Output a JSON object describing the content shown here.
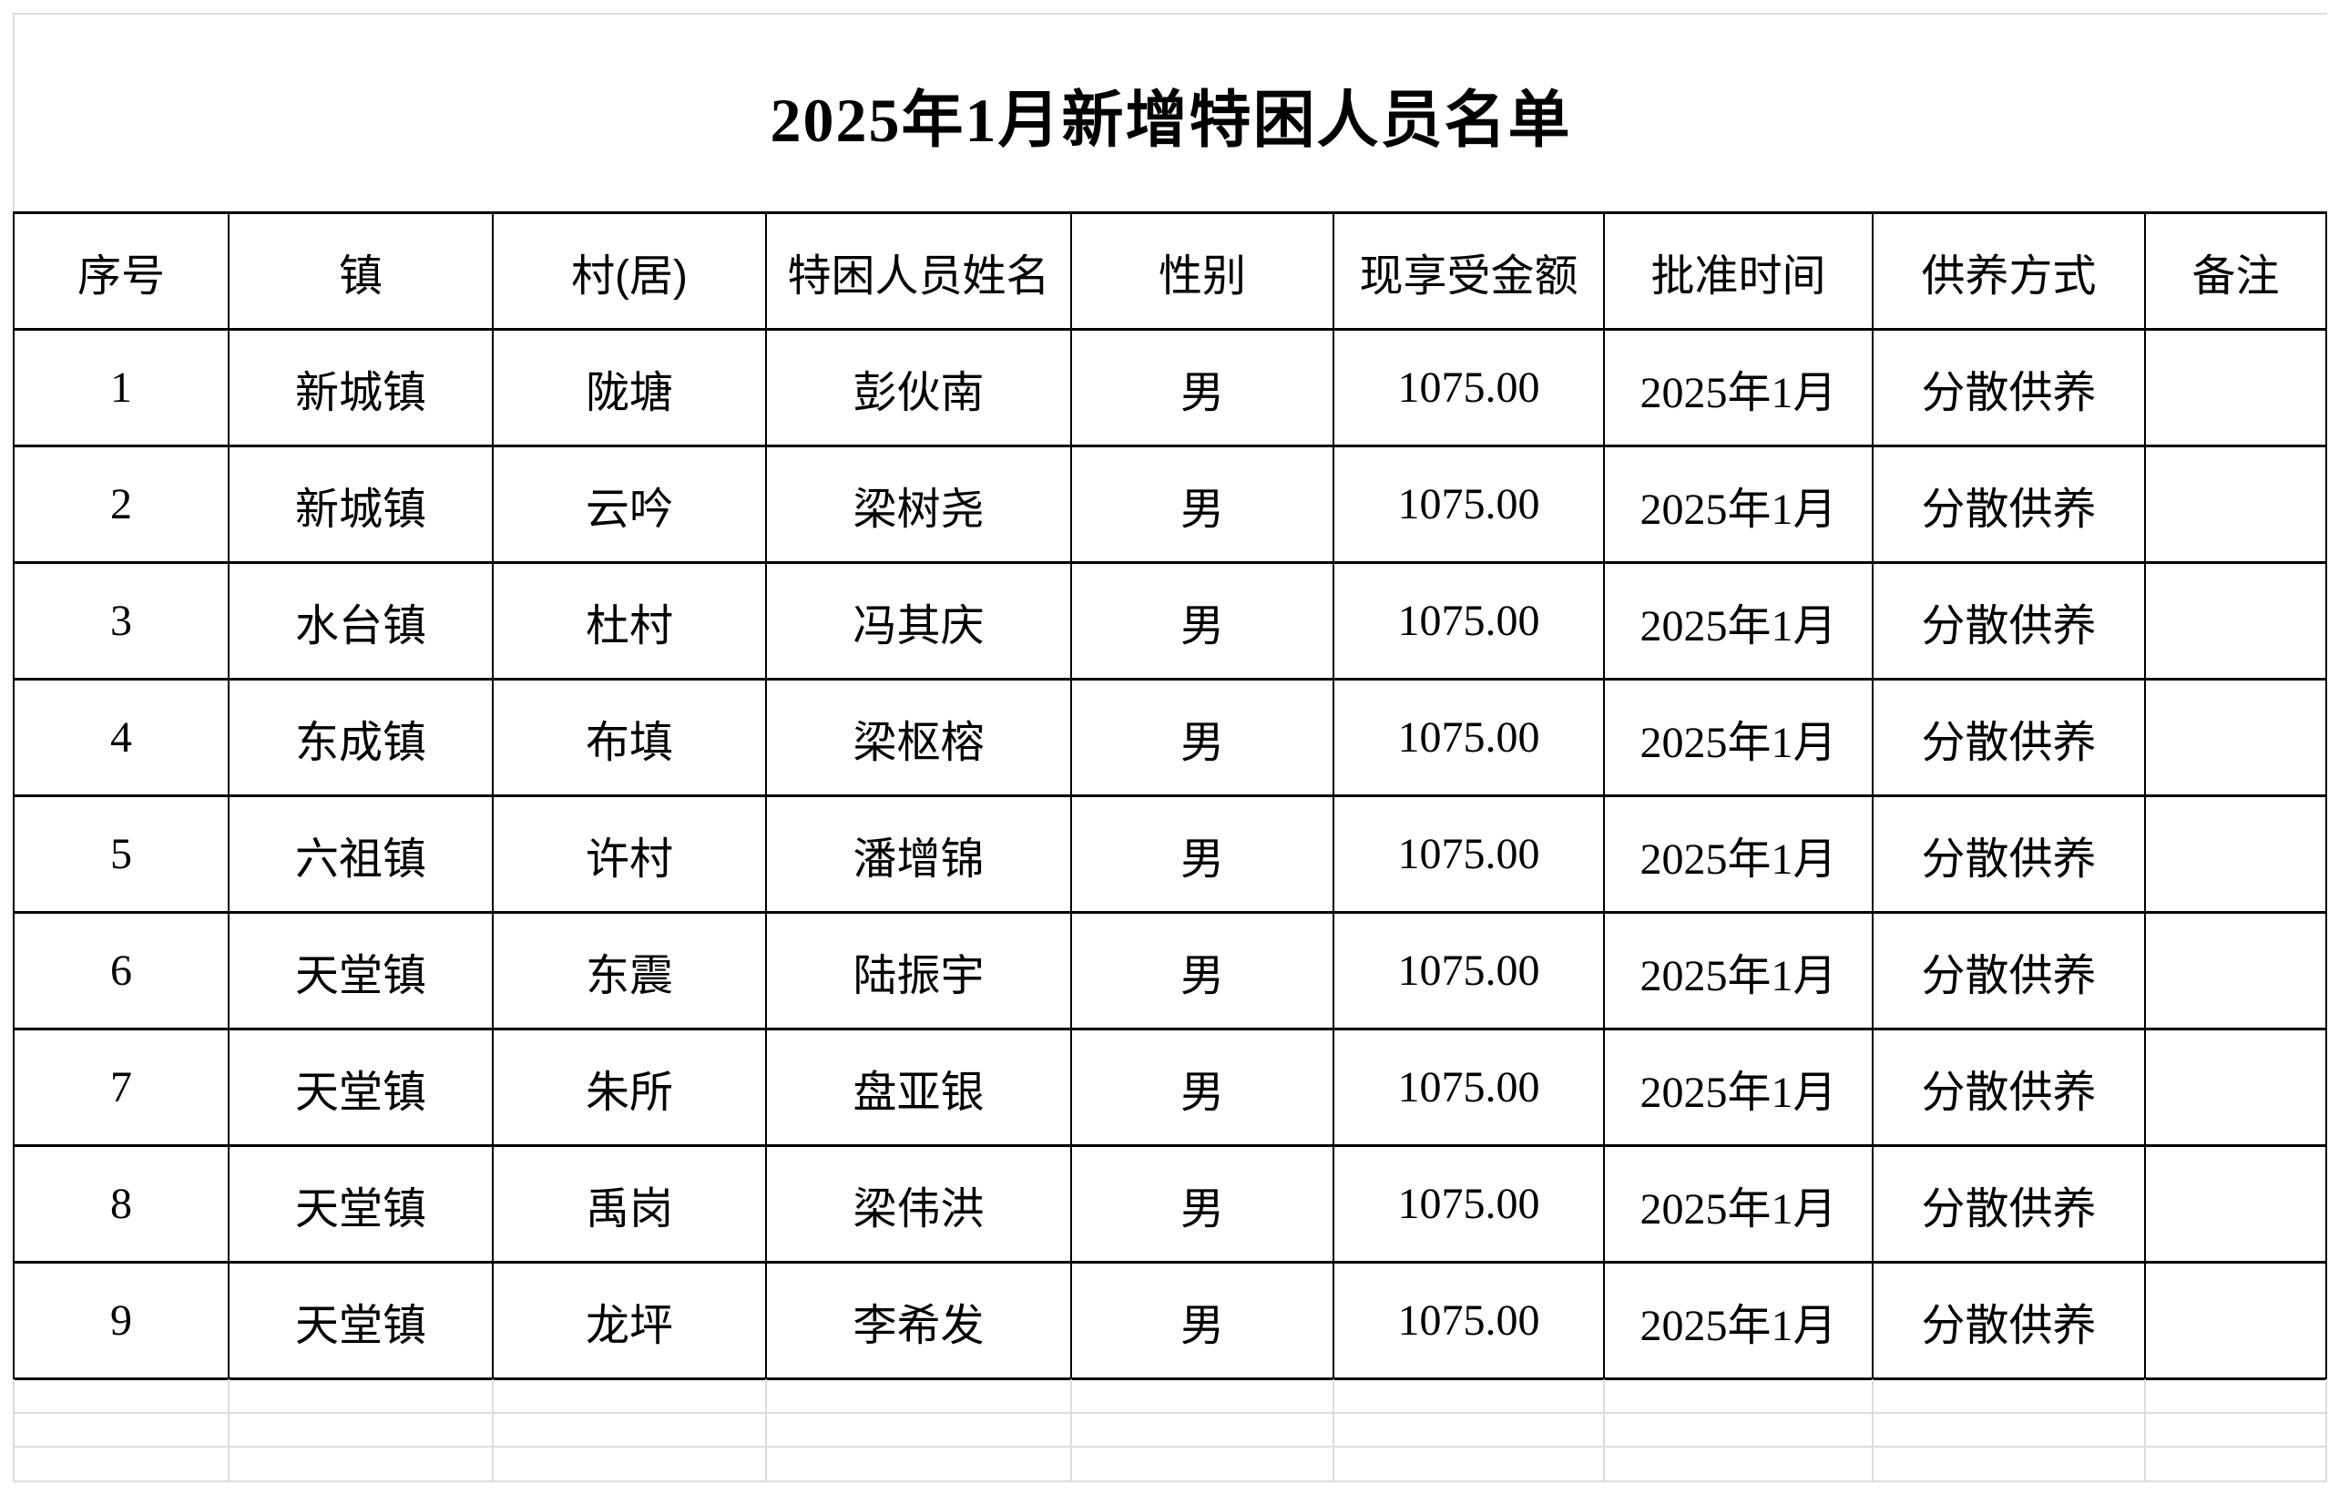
{
  "title": "2025年1月新增特困人员名单",
  "colors": {
    "background": "#ffffff",
    "text": "#000000",
    "table_border": "#000000",
    "empty_gridline": "#dcdcdc"
  },
  "table": {
    "headers": [
      "序号",
      "镇",
      "村(居)",
      "特困人员姓名",
      "性别",
      "现享受金额",
      "批准时间",
      "供养方式",
      "备注"
    ],
    "rows": [
      {
        "index": "1",
        "town": "新城镇",
        "village": "陇塘",
        "name": "彭伙南",
        "gender": "男",
        "amount": "1075.00",
        "approved": "2025年1月",
        "support": "分散供养",
        "remark": ""
      },
      {
        "index": "2",
        "town": "新城镇",
        "village": "云吟",
        "name": "梁树尧",
        "gender": "男",
        "amount": "1075.00",
        "approved": "2025年1月",
        "support": "分散供养",
        "remark": ""
      },
      {
        "index": "3",
        "town": "水台镇",
        "village": "杜村",
        "name": "冯其庆",
        "gender": "男",
        "amount": "1075.00",
        "approved": "2025年1月",
        "support": "分散供养",
        "remark": ""
      },
      {
        "index": "4",
        "town": "东成镇",
        "village": "布填",
        "name": "梁枢榕",
        "gender": "男",
        "amount": "1075.00",
        "approved": "2025年1月",
        "support": "分散供养",
        "remark": ""
      },
      {
        "index": "5",
        "town": "六祖镇",
        "village": "许村",
        "name": "潘增锦",
        "gender": "男",
        "amount": "1075.00",
        "approved": "2025年1月",
        "support": "分散供养",
        "remark": ""
      },
      {
        "index": "6",
        "town": "天堂镇",
        "village": "东震",
        "name": "陆振宇",
        "gender": "男",
        "amount": "1075.00",
        "approved": "2025年1月",
        "support": "分散供养",
        "remark": ""
      },
      {
        "index": "7",
        "town": "天堂镇",
        "village": "朱所",
        "name": "盘亚银",
        "gender": "男",
        "amount": "1075.00",
        "approved": "2025年1月",
        "support": "分散供养",
        "remark": ""
      },
      {
        "index": "8",
        "town": "天堂镇",
        "village": "禹岗",
        "name": "梁伟洪",
        "gender": "男",
        "amount": "1075.00",
        "approved": "2025年1月",
        "support": "分散供养",
        "remark": ""
      },
      {
        "index": "9",
        "town": "天堂镇",
        "village": "龙坪",
        "name": "李希发",
        "gender": "男",
        "amount": "1075.00",
        "approved": "2025年1月",
        "support": "分散供养",
        "remark": ""
      }
    ]
  }
}
